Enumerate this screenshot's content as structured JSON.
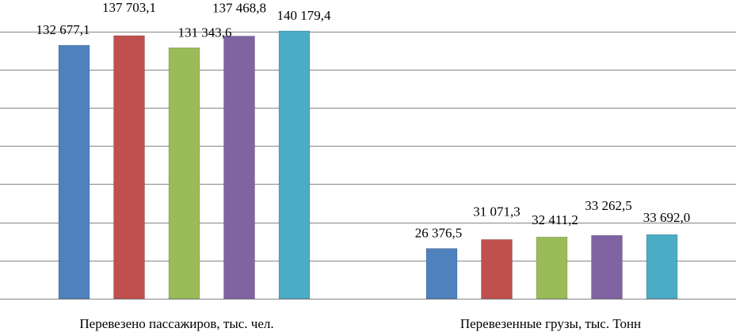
{
  "chart_data": {
    "type": "bar",
    "categories": [
      "Перевезено пассажиров, тыс. чел.",
      "Перевезенные грузы, тыс. Тонн"
    ],
    "series": [
      {
        "values": [
          132677.1,
          26376.5
        ],
        "color": "#4F81BD"
      },
      {
        "values": [
          137703.1,
          31071.3
        ],
        "color": "#C0504D"
      },
      {
        "values": [
          131343.6,
          32411.2
        ],
        "color": "#9BBB59"
      },
      {
        "values": [
          137468.8,
          33262.5
        ],
        "color": "#8064A2"
      },
      {
        "values": [
          140179.4,
          33692.0
        ],
        "color": "#4BACC6"
      }
    ],
    "data_labels": [
      [
        "132 677,1",
        "26 376,5"
      ],
      [
        "137 703,1",
        "31 071,3"
      ],
      [
        "131 343,6",
        "32 411,2"
      ],
      [
        "137 468,8",
        "33 262,5"
      ],
      [
        "140 179,4",
        "33 692,0"
      ]
    ],
    "grid": true,
    "legend": "none"
  }
}
